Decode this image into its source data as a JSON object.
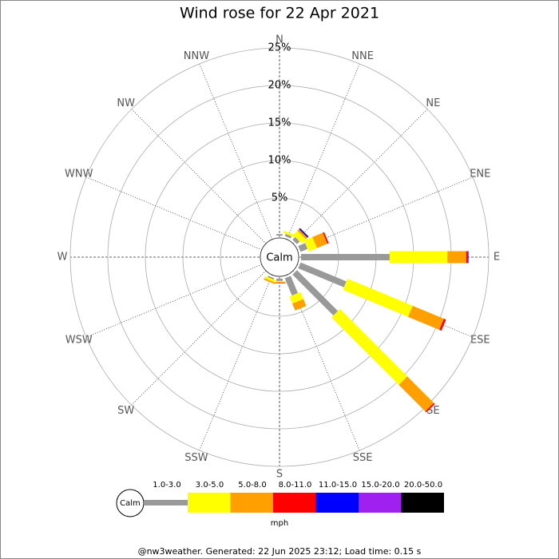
{
  "chart_data": {
    "type": "windrose",
    "title": "Wind rose for 22 Apr 2021",
    "categories": [
      "N",
      "NNE",
      "NE",
      "ENE",
      "E",
      "ESE",
      "SE",
      "SSE",
      "S",
      "SSW",
      "SW",
      "WSW",
      "W",
      "WNW",
      "NW",
      "NNW"
    ],
    "center_label": "Calm",
    "ylim": [
      0,
      25
    ],
    "yticks": [
      {
        "value": 5,
        "label": "5%"
      },
      {
        "value": 10,
        "label": "10%"
      },
      {
        "value": 15,
        "label": "15%"
      },
      {
        "value": 20,
        "label": "20%"
      },
      {
        "value": 25,
        "label": "25%"
      }
    ],
    "grid": true,
    "series": [
      {
        "name": "1.0-3.0",
        "color": "#999999",
        "values": [
          0.2,
          0.3,
          0.5,
          1.0,
          11.8,
          6.6,
          7.7,
          2.5,
          0.3,
          0.2,
          0,
          0,
          0,
          0,
          0,
          0
        ]
      },
      {
        "name": "3.0-5.0",
        "color": "#ffff00",
        "values": [
          0,
          0.3,
          0.8,
          1.2,
          7.7,
          9.4,
          12.7,
          1.0,
          0.2,
          0.3,
          0,
          0,
          0,
          0,
          0,
          0
        ]
      },
      {
        "name": "5.0-8.0",
        "color": "#ffa000",
        "values": [
          0,
          0,
          0.3,
          1.5,
          2.5,
          4.5,
          5.0,
          1.0,
          0,
          0.2,
          0,
          0,
          0,
          0,
          0,
          0
        ]
      },
      {
        "name": "8.0-11.0",
        "color": "#ff0000",
        "values": [
          0,
          0,
          0,
          0.2,
          0.2,
          0.3,
          0.2,
          0,
          0.1,
          0,
          0,
          0,
          0,
          0,
          0,
          0
        ]
      },
      {
        "name": "11.0-15.0",
        "color": "#0000ff",
        "values": [
          0,
          0,
          0.2,
          0,
          0.1,
          0,
          0,
          0,
          0,
          0,
          0,
          0,
          0,
          0,
          0,
          0
        ]
      },
      {
        "name": "15.0-20.0",
        "color": "#a020f0",
        "values": [
          0,
          0,
          0,
          0,
          0,
          0,
          0,
          0,
          0,
          0,
          0,
          0,
          0,
          0,
          0,
          0
        ]
      },
      {
        "name": "20.0-50.0",
        "color": "#000000",
        "values": [
          0,
          0,
          0,
          0,
          0,
          0,
          0,
          0,
          0,
          0,
          0,
          0,
          0,
          0,
          0,
          0
        ]
      }
    ],
    "legend_calm": "Calm",
    "legend_unit": "mph",
    "footer": "@nw3weather. Generated: 22 Jun 2025 23:12; Load time: 0.15 s"
  }
}
